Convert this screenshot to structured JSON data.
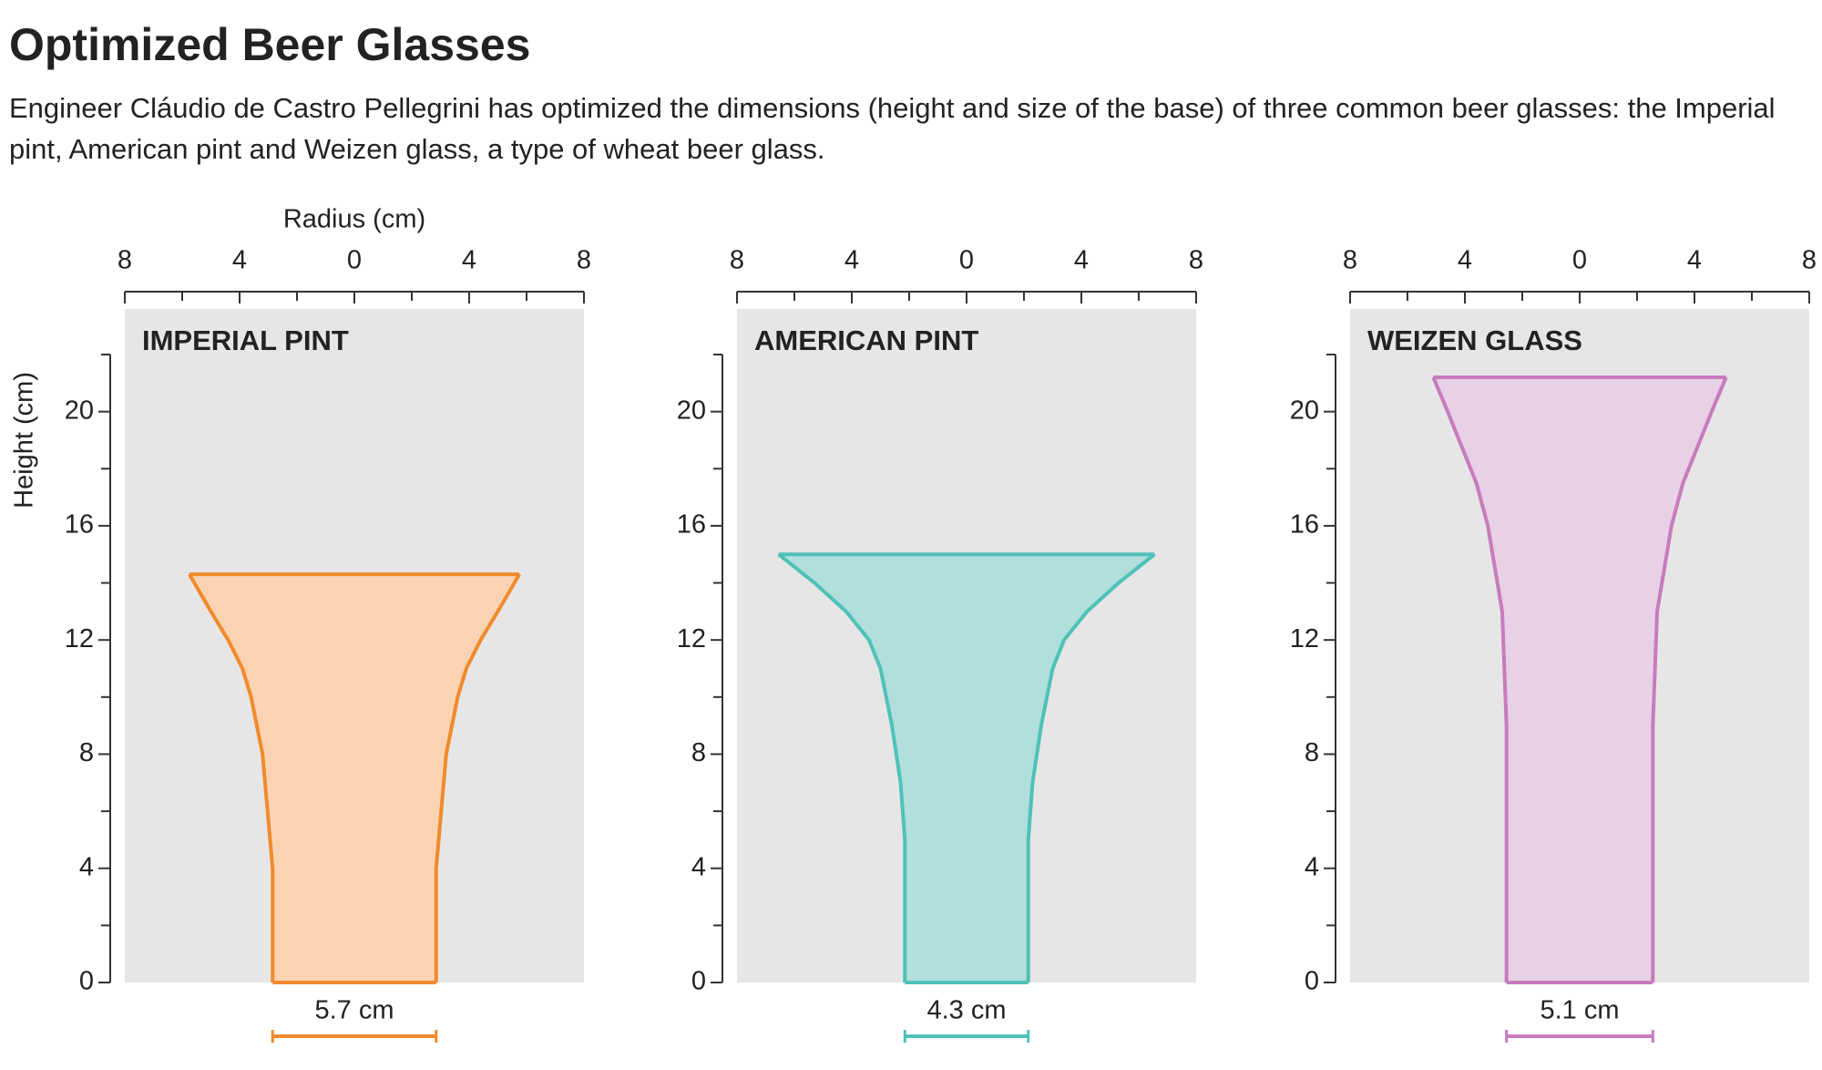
{
  "title": "Optimized Beer Glasses",
  "subtitle": "Engineer Cláudio de Castro Pellegrini has optimized the dimensions (height and size of the base) of three common beer glasses: the Imperial pint, American pint and Weizen glass, a type of wheat beer glass.",
  "chart_data": [
    {
      "type": "profile",
      "title": "IMPERIAL PINT",
      "x_label": "Radius (cm)",
      "y_label": "Height (cm)",
      "color": "#f08a2c",
      "fill": "#fbd3b3",
      "xlim": [
        -8,
        8
      ],
      "xticks": [
        {
          "value": -8,
          "label": "8"
        },
        {
          "value": -4,
          "label": "4"
        },
        0,
        4,
        8
      ],
      "xminor": [
        -6,
        -2,
        2,
        6
      ],
      "ylim": [
        0,
        22
      ],
      "yticks": [
        0,
        4,
        8,
        12,
        16,
        20
      ],
      "yminor": [
        2,
        6,
        10,
        14,
        18,
        22
      ],
      "height": [
        0,
        4,
        8,
        10,
        11,
        12,
        13,
        14.3
      ],
      "radius": [
        2.85,
        2.85,
        3.2,
        3.6,
        3.9,
        4.4,
        5.0,
        5.75
      ],
      "base_width": 5.7,
      "base_width_label": "5.7 cm"
    },
    {
      "type": "profile",
      "title": "AMERICAN PINT",
      "color": "#4fc1b9",
      "fill": "#b0dfdc",
      "xlim": [
        -8,
        8
      ],
      "xticks": [
        {
          "value": -8,
          "label": "8"
        },
        {
          "value": -4,
          "label": "4"
        },
        0,
        4,
        8
      ],
      "xminor": [
        -6,
        -2,
        2,
        6
      ],
      "ylim": [
        0,
        22
      ],
      "yticks": [
        0,
        4,
        8,
        12,
        16,
        20
      ],
      "yminor": [
        2,
        6,
        10,
        14,
        18,
        22
      ],
      "height": [
        0,
        5,
        7,
        9,
        11,
        12,
        13,
        14,
        15
      ],
      "radius": [
        2.15,
        2.15,
        2.3,
        2.6,
        3.0,
        3.4,
        4.2,
        5.3,
        6.55
      ],
      "base_width": 4.3,
      "base_width_label": "4.3 cm"
    },
    {
      "type": "profile",
      "title": "WEIZEN GLASS",
      "color": "#c77bbd",
      "fill": "#e8d0e6",
      "xlim": [
        -8,
        8
      ],
      "xticks": [
        {
          "value": -8,
          "label": "8"
        },
        {
          "value": -4,
          "label": "4"
        },
        0,
        4,
        8
      ],
      "xminor": [
        -6,
        -2,
        2,
        6
      ],
      "ylim": [
        0,
        22
      ],
      "yticks": [
        0,
        4,
        8,
        12,
        16,
        20
      ],
      "yminor": [
        2,
        6,
        10,
        14,
        18,
        22
      ],
      "height": [
        0,
        9,
        13,
        16,
        17.5,
        19,
        20,
        21.2
      ],
      "radius": [
        2.55,
        2.55,
        2.7,
        3.2,
        3.6,
        4.2,
        4.6,
        5.1
      ],
      "base_width": 5.1,
      "base_width_label": "5.1 cm"
    }
  ]
}
